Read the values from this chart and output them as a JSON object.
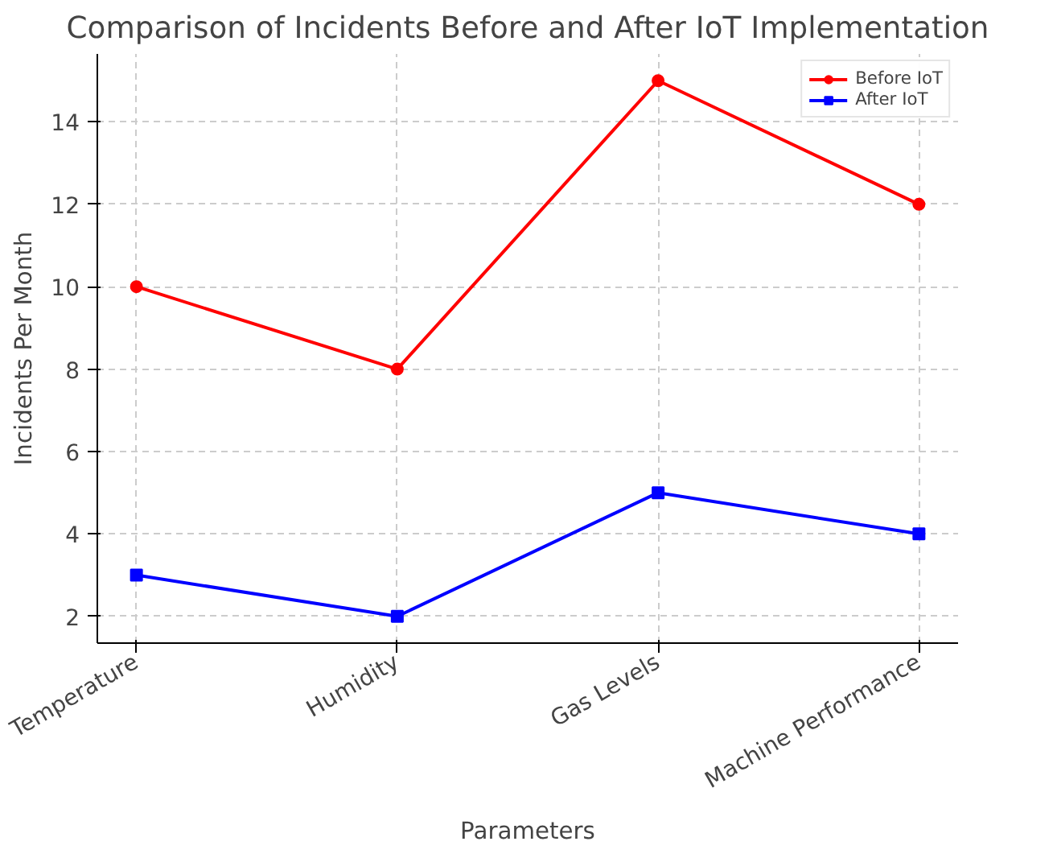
{
  "chart_data": {
    "type": "line",
    "title": "Comparison of Incidents Before and After IoT Implementation",
    "xlabel": "Parameters",
    "ylabel": "Incidents Per Month",
    "categories": [
      "Temperature",
      "Humidity",
      "Gas Levels",
      "Machine Performance"
    ],
    "series": [
      {
        "name": "Before IoT",
        "color": "#ff0000",
        "values": [
          10,
          8,
          15,
          12
        ],
        "marker": "circle"
      },
      {
        "name": "After IoT",
        "color": "#0000ff",
        "values": [
          3,
          2,
          5,
          4
        ],
        "marker": "square"
      }
    ],
    "ylim": [
      1.35,
      15.65
    ],
    "yticks": [
      2,
      4,
      6,
      8,
      10,
      12,
      14
    ],
    "grid": true,
    "legend": "top right",
    "line_style": "solid"
  }
}
